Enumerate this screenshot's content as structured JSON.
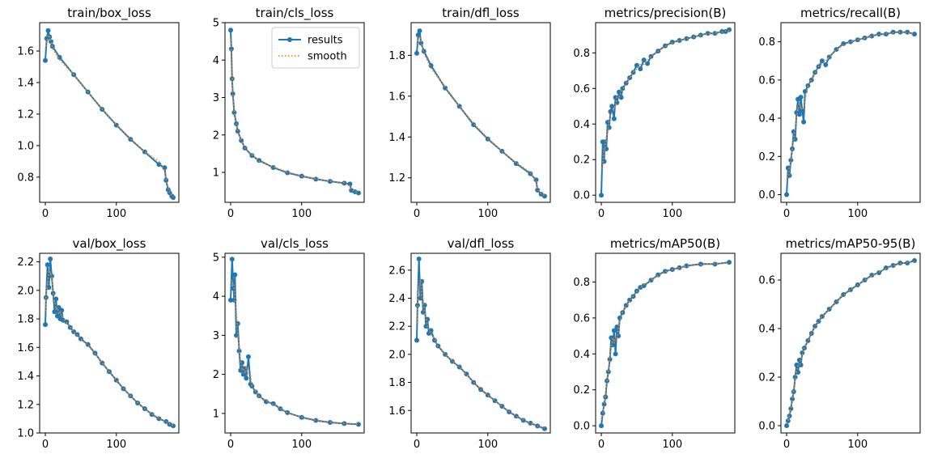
{
  "colors": {
    "results": "#1f77b4",
    "smooth": "#ff7f0e",
    "axis": "#000000"
  },
  "legend": {
    "items": [
      "results",
      "smooth"
    ],
    "position": "top-right",
    "panel": 1
  },
  "chart_data": [
    {
      "type": "line",
      "title": "train/box_loss",
      "xlim": [
        -8,
        188
      ],
      "ylim": [
        0.64,
        1.78
      ],
      "xticks": [
        0,
        100
      ],
      "yticks": [
        0.8,
        1.0,
        1.2,
        1.4,
        1.6
      ],
      "tick_labels_y": [
        "0.8",
        "1.0",
        "1.2",
        "1.4",
        "1.6"
      ],
      "x": [
        0,
        2,
        4,
        6,
        8,
        10,
        20,
        40,
        60,
        80,
        100,
        120,
        140,
        160,
        168,
        170,
        173,
        175,
        178,
        180
      ],
      "y": [
        1.54,
        1.68,
        1.73,
        1.69,
        1.66,
        1.63,
        1.56,
        1.45,
        1.34,
        1.23,
        1.13,
        1.04,
        0.96,
        0.88,
        0.86,
        0.78,
        0.72,
        0.7,
        0.68,
        0.67
      ]
    },
    {
      "type": "line",
      "title": "train/cls_loss",
      "xlim": [
        -8,
        188
      ],
      "ylim": [
        0.2,
        5.0
      ],
      "xticks": [
        0,
        100
      ],
      "yticks": [
        1,
        2,
        3,
        4,
        5
      ],
      "tick_labels_y": [
        "1",
        "2",
        "3",
        "4",
        "5"
      ],
      "x": [
        0,
        1,
        2,
        3,
        5,
        8,
        10,
        15,
        20,
        30,
        40,
        60,
        80,
        100,
        120,
        140,
        160,
        168,
        170,
        175,
        180
      ],
      "y": [
        4.8,
        4.3,
        3.5,
        3.1,
        2.6,
        2.3,
        2.1,
        1.85,
        1.65,
        1.45,
        1.32,
        1.13,
        0.99,
        0.9,
        0.82,
        0.76,
        0.71,
        0.69,
        0.52,
        0.48,
        0.45
      ]
    },
    {
      "type": "line",
      "title": "train/dfl_loss",
      "xlim": [
        -8,
        188
      ],
      "ylim": [
        1.08,
        1.96
      ],
      "xticks": [
        0,
        100
      ],
      "yticks": [
        1.2,
        1.4,
        1.6,
        1.8
      ],
      "tick_labels_y": [
        "1.2",
        "1.4",
        "1.6",
        "1.8"
      ],
      "x": [
        0,
        2,
        4,
        6,
        10,
        20,
        40,
        60,
        80,
        100,
        120,
        140,
        160,
        168,
        170,
        175,
        180
      ],
      "y": [
        1.81,
        1.9,
        1.92,
        1.86,
        1.82,
        1.75,
        1.64,
        1.55,
        1.46,
        1.39,
        1.33,
        1.27,
        1.22,
        1.19,
        1.14,
        1.12,
        1.11
      ]
    },
    {
      "type": "line",
      "title": "metrics/precision(B)",
      "xlim": [
        -8,
        188
      ],
      "ylim": [
        -0.04,
        0.97
      ],
      "xticks": [
        0,
        100
      ],
      "yticks": [
        0.0,
        0.2,
        0.4,
        0.6,
        0.8
      ],
      "tick_labels_y": [
        "0.0",
        "0.2",
        "0.4",
        "0.6",
        "0.8"
      ],
      "x": [
        0,
        2,
        4,
        5,
        7,
        9,
        11,
        13,
        15,
        18,
        20,
        22,
        25,
        28,
        30,
        35,
        40,
        45,
        50,
        55,
        60,
        65,
        70,
        80,
        90,
        100,
        110,
        120,
        130,
        140,
        150,
        160,
        170,
        175,
        180
      ],
      "y": [
        0.0,
        0.3,
        0.19,
        0.3,
        0.26,
        0.41,
        0.38,
        0.47,
        0.5,
        0.43,
        0.55,
        0.52,
        0.58,
        0.55,
        0.6,
        0.63,
        0.66,
        0.69,
        0.73,
        0.71,
        0.76,
        0.74,
        0.78,
        0.81,
        0.84,
        0.86,
        0.87,
        0.88,
        0.89,
        0.9,
        0.91,
        0.91,
        0.92,
        0.92,
        0.93
      ]
    },
    {
      "type": "line",
      "title": "metrics/recall(B)",
      "xlim": [
        -8,
        188
      ],
      "ylim": [
        -0.04,
        0.9
      ],
      "xticks": [
        0,
        100
      ],
      "yticks": [
        0.0,
        0.2,
        0.4,
        0.6,
        0.8
      ],
      "tick_labels_y": [
        "0.0",
        "0.2",
        "0.4",
        "0.6",
        "0.8"
      ],
      "x": [
        0,
        2,
        4,
        6,
        8,
        10,
        12,
        14,
        16,
        18,
        20,
        22,
        24,
        26,
        30,
        35,
        40,
        45,
        50,
        55,
        60,
        70,
        80,
        90,
        100,
        110,
        120,
        130,
        140,
        150,
        160,
        170,
        180
      ],
      "y": [
        0.0,
        0.14,
        0.1,
        0.18,
        0.24,
        0.33,
        0.29,
        0.43,
        0.5,
        0.42,
        0.51,
        0.44,
        0.38,
        0.54,
        0.57,
        0.6,
        0.64,
        0.67,
        0.7,
        0.68,
        0.72,
        0.76,
        0.79,
        0.8,
        0.81,
        0.82,
        0.83,
        0.84,
        0.84,
        0.85,
        0.85,
        0.85,
        0.84
      ]
    },
    {
      "type": "line",
      "title": "val/box_loss",
      "xlim": [
        -8,
        188
      ],
      "ylim": [
        1.0,
        2.26
      ],
      "xticks": [
        0,
        100
      ],
      "yticks": [
        1.0,
        1.2,
        1.4,
        1.6,
        1.8,
        2.0,
        2.2
      ],
      "tick_labels_y": [
        "1.0",
        "1.2",
        "1.4",
        "1.6",
        "1.8",
        "2.0",
        "2.2"
      ],
      "x": [
        0,
        1,
        3,
        5,
        7,
        9,
        11,
        13,
        15,
        17,
        19,
        21,
        23,
        25,
        30,
        35,
        40,
        45,
        50,
        60,
        70,
        80,
        90,
        100,
        110,
        120,
        130,
        140,
        150,
        160,
        170,
        175,
        180
      ],
      "y": [
        1.76,
        1.95,
        2.18,
        2.02,
        2.22,
        2.1,
        1.98,
        1.85,
        1.94,
        1.82,
        1.88,
        1.8,
        1.86,
        1.79,
        1.78,
        1.74,
        1.71,
        1.69,
        1.66,
        1.62,
        1.56,
        1.49,
        1.43,
        1.37,
        1.31,
        1.26,
        1.21,
        1.17,
        1.13,
        1.1,
        1.08,
        1.06,
        1.05
      ]
    },
    {
      "type": "line",
      "title": "val/cls_loss",
      "xlim": [
        -8,
        188
      ],
      "ylim": [
        0.5,
        5.1
      ],
      "xticks": [
        0,
        100
      ],
      "yticks": [
        1,
        2,
        3,
        4,
        5
      ],
      "tick_labels_y": [
        "1",
        "2",
        "3",
        "4",
        "5"
      ],
      "x": [
        0,
        2,
        4,
        5,
        6,
        8,
        10,
        12,
        14,
        16,
        18,
        20,
        22,
        25,
        28,
        30,
        35,
        40,
        50,
        60,
        70,
        80,
        100,
        120,
        140,
        160,
        180
      ],
      "y": [
        3.9,
        4.95,
        4.2,
        3.9,
        4.55,
        3.0,
        3.3,
        2.6,
        2.1,
        2.3,
        2.0,
        2.15,
        1.9,
        2.45,
        1.75,
        1.7,
        1.55,
        1.45,
        1.3,
        1.25,
        1.12,
        1.02,
        0.9,
        0.82,
        0.77,
        0.74,
        0.72
      ]
    },
    {
      "type": "line",
      "title": "val/dfl_loss",
      "xlim": [
        -8,
        188
      ],
      "ylim": [
        1.44,
        2.72
      ],
      "xticks": [
        0,
        100
      ],
      "yticks": [
        1.6,
        1.8,
        2.0,
        2.2,
        2.4,
        2.6
      ],
      "tick_labels_y": [
        "1.6",
        "1.8",
        "2.0",
        "2.2",
        "2.4",
        "2.6"
      ],
      "x": [
        0,
        1,
        3,
        5,
        7,
        9,
        11,
        13,
        15,
        17,
        20,
        25,
        30,
        40,
        50,
        60,
        70,
        80,
        90,
        100,
        110,
        120,
        130,
        140,
        150,
        160,
        170,
        180
      ],
      "y": [
        2.1,
        2.35,
        2.68,
        2.4,
        2.52,
        2.3,
        2.35,
        2.2,
        2.25,
        2.15,
        2.17,
        2.1,
        2.06,
        2.0,
        1.95,
        1.91,
        1.86,
        1.8,
        1.75,
        1.71,
        1.67,
        1.63,
        1.59,
        1.56,
        1.53,
        1.51,
        1.49,
        1.47
      ]
    },
    {
      "type": "line",
      "title": "metrics/mAP50(B)",
      "xlim": [
        -8,
        188
      ],
      "ylim": [
        -0.04,
        0.96
      ],
      "xticks": [
        0,
        100
      ],
      "yticks": [
        0.0,
        0.2,
        0.4,
        0.6,
        0.8
      ],
      "tick_labels_y": [
        "0.0",
        "0.2",
        "0.4",
        "0.6",
        "0.8"
      ],
      "x": [
        0,
        2,
        4,
        6,
        8,
        10,
        12,
        14,
        16,
        18,
        20,
        22,
        24,
        26,
        30,
        35,
        40,
        45,
        50,
        55,
        60,
        70,
        80,
        90,
        100,
        110,
        120,
        140,
        160,
        180
      ],
      "y": [
        0.0,
        0.07,
        0.12,
        0.16,
        0.25,
        0.3,
        0.37,
        0.49,
        0.45,
        0.53,
        0.4,
        0.55,
        0.5,
        0.6,
        0.63,
        0.67,
        0.7,
        0.72,
        0.75,
        0.77,
        0.78,
        0.81,
        0.84,
        0.86,
        0.87,
        0.88,
        0.89,
        0.9,
        0.9,
        0.91
      ]
    },
    {
      "type": "line",
      "title": "metrics/mAP50-95(B)",
      "xlim": [
        -8,
        188
      ],
      "ylim": [
        -0.03,
        0.71
      ],
      "xticks": [
        0,
        100
      ],
      "yticks": [
        0.0,
        0.2,
        0.4,
        0.6
      ],
      "tick_labels_y": [
        "0.0",
        "0.2",
        "0.4",
        "0.6"
      ],
      "x": [
        0,
        2,
        4,
        6,
        8,
        10,
        12,
        14,
        16,
        18,
        20,
        22,
        25,
        30,
        35,
        40,
        45,
        50,
        60,
        70,
        80,
        90,
        100,
        110,
        120,
        130,
        140,
        150,
        160,
        170,
        180
      ],
      "y": [
        0.0,
        0.02,
        0.04,
        0.07,
        0.11,
        0.14,
        0.2,
        0.25,
        0.22,
        0.27,
        0.25,
        0.3,
        0.32,
        0.35,
        0.38,
        0.41,
        0.43,
        0.45,
        0.48,
        0.51,
        0.54,
        0.56,
        0.58,
        0.6,
        0.62,
        0.63,
        0.65,
        0.66,
        0.67,
        0.67,
        0.68
      ]
    }
  ]
}
